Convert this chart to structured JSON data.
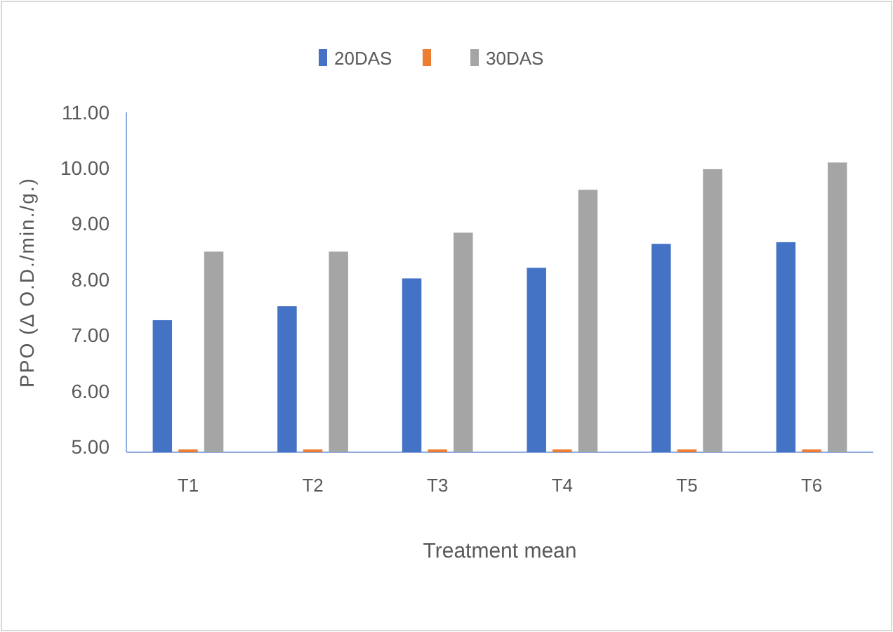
{
  "chart_data": {
    "type": "bar",
    "xlabel": "Treatment mean",
    "ylabel": "PPO (Δ O.D./min./g.)",
    "categories": [
      "T1",
      "T2",
      "T3",
      "T4",
      "T5",
      "T6"
    ],
    "series": [
      {
        "name": "20DAS",
        "color": "#4472c4",
        "values": [
          7.27,
          7.52,
          8.02,
          8.21,
          8.64,
          8.67
        ]
      },
      {
        "color": "#ed7d31",
        "values": [
          4.95,
          4.95,
          4.95,
          4.95,
          4.95,
          4.95
        ]
      },
      {
        "name": "30DAS",
        "color": "#a5a5a5",
        "values": [
          8.5,
          8.5,
          8.84,
          9.61,
          9.98,
          10.1
        ]
      }
    ],
    "ylim": [
      4.9,
      11
    ],
    "yticks": [
      {
        "value": 5,
        "label": "5.00"
      },
      {
        "value": 6,
        "label": "6.00"
      },
      {
        "value": 7,
        "label": "7.00"
      },
      {
        "value": 8,
        "label": "8.00"
      },
      {
        "value": 9,
        "label": "9.00"
      },
      {
        "value": 10,
        "label": "10.00"
      },
      {
        "value": 11,
        "label": "11.00"
      }
    ],
    "grid": false,
    "legend": "top"
  }
}
